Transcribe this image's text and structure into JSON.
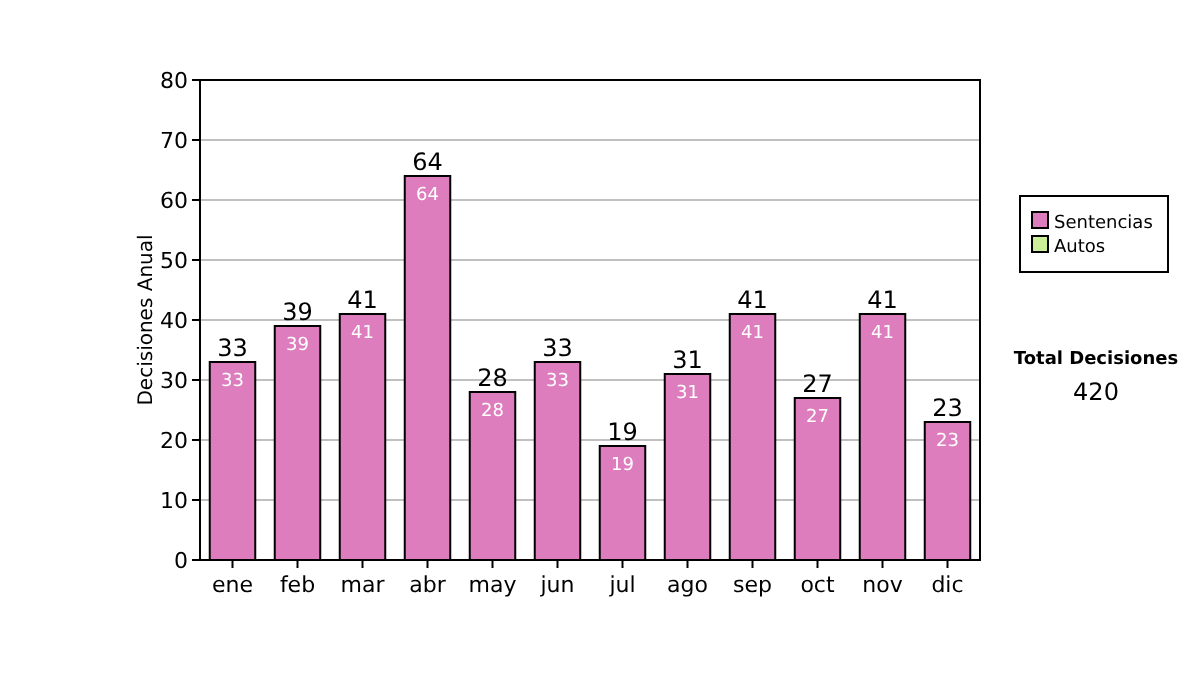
{
  "chart_data": {
    "type": "bar",
    "stacked": true,
    "ylabel": "Decisiones Anual",
    "categories": [
      "ene",
      "feb",
      "mar",
      "abr",
      "may",
      "jun",
      "jul",
      "ago",
      "sep",
      "oct",
      "nov",
      "dic"
    ],
    "series": [
      {
        "name": "Sentencias",
        "color": "#dd7dbd",
        "values": [
          33,
          39,
          41,
          64,
          28,
          33,
          19,
          31,
          41,
          27,
          41,
          23
        ],
        "value_labels": [
          "33",
          "39",
          "41",
          "64",
          "28",
          "33",
          "19",
          "31",
          "41",
          "27",
          "41",
          "23"
        ]
      },
      {
        "name": "Autos",
        "color": "#ccee99",
        "values": [
          0,
          0,
          0,
          0,
          0,
          0,
          0,
          0,
          0,
          0,
          0,
          0
        ]
      }
    ],
    "totals": [
      "33",
      "39",
      "41",
      "64",
      "28",
      "33",
      "19",
      "31",
      "41",
      "27",
      "41",
      "23"
    ],
    "ylim": [
      0,
      80
    ],
    "yticks": [
      0,
      10,
      20,
      30,
      40,
      50,
      60,
      70,
      80
    ],
    "grid": "y",
    "legend": "right",
    "annotations": [
      "Total Decisiones",
      "420"
    ]
  }
}
